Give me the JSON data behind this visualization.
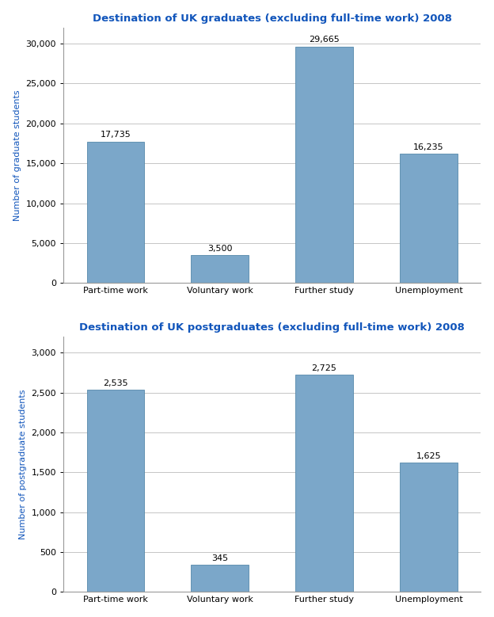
{
  "grad_title": "Destination of UK graduates (excluding full-time work) 2008",
  "postgrad_title": "Destination of UK postgraduates (excluding full-time work) 2008",
  "categories": [
    "Part-time work",
    "Voluntary work",
    "Further study",
    "Unemployment"
  ],
  "grad_values": [
    17735,
    3500,
    29665,
    16235
  ],
  "postgrad_values": [
    2535,
    345,
    2725,
    1625
  ],
  "grad_labels": [
    "17,735",
    "3,500",
    "29,665",
    "16,235"
  ],
  "postgrad_labels": [
    "2,535",
    "345",
    "2,725",
    "1,625"
  ],
  "bar_color": "#7BA7C9",
  "bar_edge_color": "#5588AA",
  "grad_ylabel": "Number of graduate students",
  "postgrad_ylabel": "Number of postgraduate students",
  "grad_ylim": [
    0,
    32000
  ],
  "postgrad_ylim": [
    0,
    3200
  ],
  "grad_yticks": [
    0,
    5000,
    10000,
    15000,
    20000,
    25000,
    30000
  ],
  "postgrad_yticks": [
    0,
    500,
    1000,
    1500,
    2000,
    2500,
    3000
  ],
  "title_color": "#1155BB",
  "ylabel_color": "#1155BB",
  "title_fontsize": 9.5,
  "label_fontsize": 8,
  "ylabel_fontsize": 8,
  "tick_fontsize": 8,
  "annotation_fontsize": 8,
  "background_color": "#FFFFFF",
  "grid_color": "#BBBBBB",
  "bar_width": 0.55
}
